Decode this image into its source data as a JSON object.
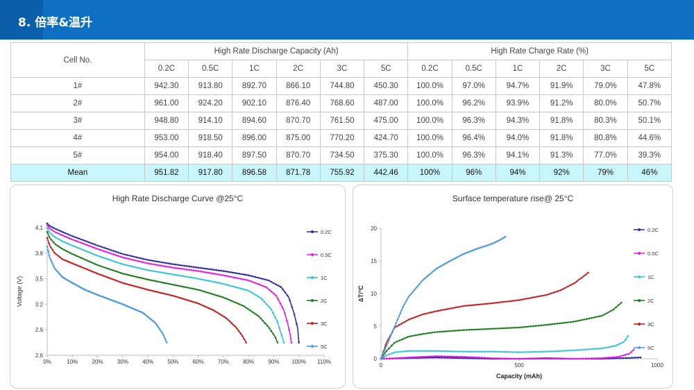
{
  "header": {
    "title": "8.  倍率&温升"
  },
  "table": {
    "cell_no_label": "Cell No.",
    "discharge_group": "High Rate Discharge Capacity (Ah)",
    "charge_group": "High Rate Charge Rate (%)",
    "rates": [
      "0.2C",
      "0.5C",
      "1C",
      "2C",
      "3C",
      "5C"
    ],
    "rows": [
      {
        "cell": "1#",
        "discharge": [
          "942.30",
          "913.80",
          "892.70",
          "866.10",
          "744.80",
          "450.30"
        ],
        "charge": [
          "100.0%",
          "97.0%",
          "94.7%",
          "91.9%",
          "79.0%",
          "47.8%"
        ]
      },
      {
        "cell": "2#",
        "discharge": [
          "961.00",
          "924.20",
          "902.10",
          "876.40",
          "768.60",
          "487.00"
        ],
        "charge": [
          "100.0%",
          "96.2%",
          "93.9%",
          "91.2%",
          "80.0%",
          "50.7%"
        ]
      },
      {
        "cell": "3#",
        "discharge": [
          "948.80",
          "914.10",
          "894.60",
          "870.70",
          "761.50",
          "475.00"
        ],
        "charge": [
          "100.0%",
          "96.3%",
          "94.3%",
          "91.8%",
          "80.3%",
          "50.1%"
        ]
      },
      {
        "cell": "4#",
        "discharge": [
          "953.00",
          "918.50",
          "896.00",
          "875.00",
          "770.20",
          "424.70"
        ],
        "charge": [
          "100.0%",
          "96.4%",
          "94.0%",
          "91.8%",
          "80.8%",
          "44.6%"
        ]
      },
      {
        "cell": "5#",
        "discharge": [
          "954.00",
          "918.40",
          "897.50",
          "870.70",
          "734.50",
          "375.30"
        ],
        "charge": [
          "100.0%",
          "96.3%",
          "94.1%",
          "91.3%",
          "77.0%",
          "39.3%"
        ]
      }
    ],
    "mean": {
      "cell": "Mean",
      "discharge": [
        "951.82",
        "917.80",
        "896.58",
        "871.78",
        "755.92",
        "442.46"
      ],
      "charge": [
        "100%",
        "96%",
        "94%",
        "92%",
        "79%",
        "46%"
      ]
    }
  },
  "chart_data": [
    {
      "type": "line",
      "title": "High Rate Discharge Curve  @25°C",
      "xlabel": "",
      "ylabel": "Voltage (V)",
      "xlim": [
        0,
        110
      ],
      "ylim": [
        2.6,
        4.1
      ],
      "xticks": [
        "0%",
        "10%",
        "20%",
        "30%",
        "40%",
        "50%",
        "60%",
        "70%",
        "80%",
        "90%",
        "100%",
        "110%"
      ],
      "yticks": [
        "2.6",
        "2.9",
        "3.2",
        "3.5",
        "3.8",
        "4.1"
      ],
      "legend_position": "right",
      "series": [
        {
          "name": "0.2C",
          "color": "#2b2ba6",
          "x": [
            0,
            1,
            3,
            6,
            10,
            20,
            30,
            40,
            50,
            60,
            70,
            80,
            88,
            93,
            96,
            98,
            99.5,
            100
          ],
          "y": [
            4.15,
            4.12,
            4.09,
            4.05,
            4.0,
            3.89,
            3.79,
            3.72,
            3.67,
            3.63,
            3.59,
            3.54,
            3.48,
            3.4,
            3.28,
            3.1,
            2.92,
            2.75
          ]
        },
        {
          "name": "0.5C",
          "color": "#e619e6",
          "x": [
            0,
            1,
            3,
            6,
            10,
            20,
            30,
            40,
            50,
            60,
            70,
            80,
            87,
            91,
            94,
            95.5,
            96.5,
            97
          ],
          "y": [
            4.13,
            4.09,
            4.05,
            4.01,
            3.96,
            3.85,
            3.75,
            3.68,
            3.63,
            3.59,
            3.54,
            3.48,
            3.4,
            3.3,
            3.13,
            2.98,
            2.85,
            2.75
          ]
        },
        {
          "name": "1C",
          "color": "#33c4d4",
          "x": [
            0,
            1,
            3,
            6,
            10,
            20,
            30,
            40,
            50,
            60,
            70,
            80,
            85,
            89,
            91.5,
            93,
            94
          ],
          "y": [
            4.1,
            4.04,
            3.99,
            3.94,
            3.89,
            3.77,
            3.67,
            3.6,
            3.55,
            3.5,
            3.44,
            3.36,
            3.27,
            3.14,
            2.99,
            2.85,
            2.75
          ]
        },
        {
          "name": "2C",
          "color": "#1d7a1d",
          "x": [
            0,
            1,
            3,
            6,
            10,
            20,
            30,
            40,
            50,
            60,
            70,
            78,
            84,
            88,
            90.5,
            91.5
          ],
          "y": [
            4.05,
            3.98,
            3.91,
            3.85,
            3.79,
            3.66,
            3.56,
            3.49,
            3.43,
            3.37,
            3.28,
            3.18,
            3.06,
            2.93,
            2.82,
            2.75
          ]
        },
        {
          "name": "3C",
          "color": "#c41e1e",
          "x": [
            0,
            1,
            3,
            6,
            10,
            20,
            30,
            40,
            50,
            60,
            66,
            71,
            75,
            77.5,
            79
          ],
          "y": [
            3.98,
            3.89,
            3.8,
            3.73,
            3.68,
            3.56,
            3.45,
            3.37,
            3.3,
            3.21,
            3.13,
            3.04,
            2.93,
            2.83,
            2.75
          ]
        },
        {
          "name": "5C",
          "color": "#4f9be0",
          "x": [
            0,
            1,
            3,
            6,
            10,
            15,
            20,
            30,
            38,
            43,
            46,
            47.5
          ],
          "y": [
            3.88,
            3.75,
            3.62,
            3.52,
            3.45,
            3.37,
            3.31,
            3.2,
            3.1,
            2.98,
            2.85,
            2.75
          ]
        }
      ]
    },
    {
      "type": "line",
      "title": "Surface temperature rise@ 25°C",
      "xlabel": "Capacity (mAh)",
      "ylabel": "∆T/°C",
      "xlim": [
        0,
        1000
      ],
      "ylim": [
        0,
        20
      ],
      "xticks": [
        "0",
        "500",
        "1000"
      ],
      "yticks": [
        "0",
        "5",
        "10",
        "15",
        "20"
      ],
      "legend_position": "right",
      "series": [
        {
          "name": "0.2C",
          "color": "#2b2ba6",
          "x": [
            0,
            100,
            200,
            300,
            400,
            500,
            600,
            700,
            800,
            880,
            940
          ],
          "y": [
            0.0,
            0.1,
            0.2,
            0.1,
            0.0,
            0.0,
            0.1,
            0.0,
            0.0,
            0.1,
            0.2
          ]
        },
        {
          "name": "0.5C",
          "color": "#e619e6",
          "x": [
            0,
            100,
            200,
            300,
            400,
            500,
            600,
            700,
            800,
            860,
            900,
            915
          ],
          "y": [
            0.0,
            0.2,
            0.4,
            0.3,
            0.1,
            0.0,
            0.0,
            0.0,
            0.1,
            0.3,
            0.8,
            1.4
          ]
        },
        {
          "name": "1C",
          "color": "#33c4d4",
          "x": [
            0,
            20,
            50,
            100,
            200,
            300,
            400,
            500,
            600,
            700,
            800,
            850,
            880,
            895
          ],
          "y": [
            0.0,
            0.5,
            1.0,
            1.2,
            1.2,
            1.1,
            1.1,
            1.0,
            1.1,
            1.3,
            1.6,
            2.0,
            2.6,
            3.5
          ]
        },
        {
          "name": "2C",
          "color": "#1d7a1d",
          "x": [
            0,
            20,
            50,
            100,
            150,
            200,
            300,
            400,
            500,
            600,
            700,
            800,
            840,
            870
          ],
          "y": [
            0.0,
            1.2,
            2.5,
            3.4,
            3.8,
            4.1,
            4.4,
            4.6,
            4.8,
            5.2,
            5.7,
            6.6,
            7.5,
            8.6
          ]
        },
        {
          "name": "3C",
          "color": "#c41e1e",
          "x": [
            0,
            20,
            50,
            100,
            150,
            200,
            300,
            400,
            500,
            600,
            650,
            700,
            735,
            750
          ],
          "y": [
            0.0,
            2.5,
            4.8,
            6.0,
            6.8,
            7.3,
            8.1,
            8.5,
            9.0,
            9.8,
            10.5,
            11.6,
            12.7,
            13.2
          ]
        },
        {
          "name": "5C",
          "color": "#4f9be0",
          "x": [
            0,
            20,
            40,
            60,
            80,
            100,
            150,
            200,
            250,
            300,
            350,
            400,
            430,
            450
          ],
          "y": [
            0.0,
            2.0,
            4.0,
            6.0,
            8.0,
            9.5,
            12.0,
            13.8,
            15.0,
            16.1,
            16.9,
            17.6,
            18.2,
            18.7
          ]
        }
      ]
    }
  ]
}
